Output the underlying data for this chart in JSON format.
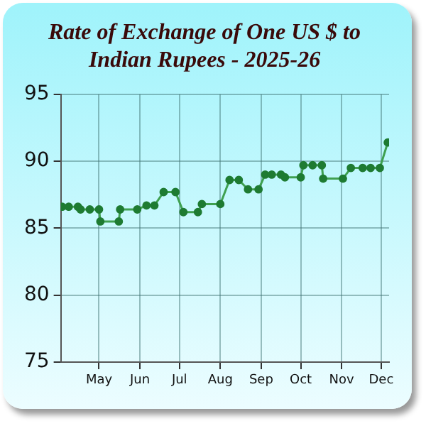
{
  "chart_data": {
    "type": "line",
    "title": "Rate of Exchange of One US $ to Indian Rupees - 2025-26",
    "x": [
      "2025-04-03",
      "2025-04-08",
      "2025-04-15",
      "2025-04-17",
      "2025-04-24",
      "2025-05-01",
      "2025-05-02",
      "2025-05-16",
      "2025-05-17",
      "2025-05-30",
      "2025-06-06",
      "2025-06-12",
      "2025-06-19",
      "2025-06-28",
      "2025-07-04",
      "2025-07-15",
      "2025-07-18",
      "2025-08-01",
      "2025-08-08",
      "2025-08-15",
      "2025-08-22",
      "2025-08-30",
      "2025-09-04",
      "2025-09-09",
      "2025-09-16",
      "2025-09-19",
      "2025-10-01",
      "2025-10-03",
      "2025-10-10",
      "2025-10-17",
      "2025-10-18",
      "2025-11-02",
      "2025-11-08",
      "2025-11-17",
      "2025-11-23",
      "2025-11-30",
      "2025-12-06"
    ],
    "series": [
      {
        "color": "#1e7b32",
        "values": [
          86.6,
          86.6,
          86.6,
          86.4,
          86.4,
          86.4,
          85.5,
          85.5,
          86.4,
          86.4,
          86.7,
          86.7,
          87.7,
          87.7,
          86.2,
          86.2,
          86.8,
          86.8,
          88.6,
          88.6,
          87.9,
          87.9,
          89.0,
          89.0,
          89.0,
          88.8,
          88.8,
          89.7,
          89.7,
          89.7,
          88.7,
          88.7,
          89.5,
          89.5,
          89.5,
          89.5,
          91.4
        ]
      }
    ],
    "xlim": [
      "2025-04-02",
      "2025-12-07"
    ],
    "xticks": [
      {
        "value": "2025-05-01",
        "label": "May"
      },
      {
        "value": "2025-06-01",
        "label": "Jun"
      },
      {
        "value": "2025-07-01",
        "label": "Jul"
      },
      {
        "value": "2025-08-01",
        "label": "Aug"
      },
      {
        "value": "2025-09-01",
        "label": "Sep"
      },
      {
        "value": "2025-10-01",
        "label": "Oct"
      },
      {
        "value": "2025-11-01",
        "label": "Nov"
      },
      {
        "value": "2025-12-01",
        "label": "Dec"
      }
    ],
    "ylim": [
      75,
      95
    ],
    "yticks": [
      75,
      80,
      85,
      90,
      95
    ],
    "grid": true,
    "marker": "circle",
    "line_style": "solid"
  }
}
